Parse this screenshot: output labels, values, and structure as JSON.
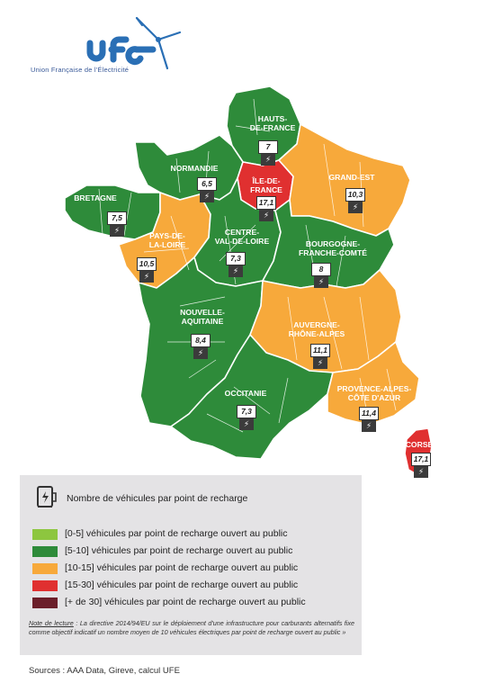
{
  "logo": {
    "name": "UFE",
    "tagline": "Union Française de l'Électricité"
  },
  "colors": {
    "range_0_5": "#8dc63f",
    "range_5_10": "#2e8b3a",
    "range_10_15": "#f7a93b",
    "range_15_30": "#e03030",
    "range_30_plus": "#6b1f2a",
    "border": "#ffffff"
  },
  "regions": [
    {
      "id": "hauts-de-france",
      "name_line1": "HAUTS-",
      "name_line2": "DE-FRANCE",
      "value": "7",
      "category": "5-10"
    },
    {
      "id": "normandie",
      "name_line1": "NORMANDIE",
      "name_line2": "",
      "value": "6,5",
      "category": "5-10"
    },
    {
      "id": "ile-de-france",
      "name_line1": "ÎLE-DE-",
      "name_line2": "FRANCE",
      "value": "17,1",
      "category": "15-30"
    },
    {
      "id": "grand-est",
      "name_line1": "GRAND-EST",
      "name_line2": "",
      "value": "10,3",
      "category": "10-15"
    },
    {
      "id": "bretagne",
      "name_line1": "BRETAGNE",
      "name_line2": "",
      "value": "7,5",
      "category": "5-10"
    },
    {
      "id": "pays-de-la-loire",
      "name_line1": "PAYS-DE-",
      "name_line2": "LA-LOIRE",
      "value": "10,5",
      "category": "10-15"
    },
    {
      "id": "centre-val-de-loire",
      "name_line1": "CENTRE-",
      "name_line2": "VAL-DE-LOIRE",
      "value": "7,3",
      "category": "5-10"
    },
    {
      "id": "bourgogne-franche-comte",
      "name_line1": "BOURGOGNE-",
      "name_line2": "FRANCHE-COMTÉ",
      "value": "8",
      "category": "5-10"
    },
    {
      "id": "nouvelle-aquitaine",
      "name_line1": "NOUVELLE-",
      "name_line2": "AQUITAINE",
      "value": "8,4",
      "category": "5-10"
    },
    {
      "id": "auvergne-rhone-alpes",
      "name_line1": "AUVERGNE-",
      "name_line2": "RHÔNE-ALPES",
      "value": "11,1",
      "category": "10-15"
    },
    {
      "id": "occitanie",
      "name_line1": "OCCITANIE",
      "name_line2": "",
      "value": "7,3",
      "category": "5-10"
    },
    {
      "id": "provence-alpes-cote-dazur",
      "name_line1": "PROVENCE-ALPES-",
      "name_line2": "CÔTE D'AZUR",
      "value": "11,4",
      "category": "10-15"
    },
    {
      "id": "corse",
      "name_line1": "CORSE",
      "name_line2": "",
      "value": "17,1",
      "category": "15-30"
    }
  ],
  "legend": {
    "title": "Nombre de véhicules par point de recharge",
    "items": [
      {
        "label": "[0-5] véhicules par point de recharge ouvert au public"
      },
      {
        "label": "[5-10] véhicules par point de recharge ouvert au public"
      },
      {
        "label": "[10-15] véhicules par point de recharge ouvert au public"
      },
      {
        "label": "[15-30] véhicules par point de recharge ouvert au public"
      },
      {
        "label": "[+ de 30] véhicules par point de recharge ouvert au public"
      }
    ],
    "note_label": "Note de lecture",
    "note_text": " : La directive 2014/94/EU sur le déploiement d'une infrastructure pour carburants alternatifs fixe comme objectif indicatif un nombre moyen de 10 véhicules électriques par point de recharge ouvert au public »"
  },
  "sources": "Sources : AAA Data, Gireve, calcul UFE",
  "icons": {
    "charger": "ev-charger-icon",
    "bolt": "lightning-bolt-icon"
  }
}
